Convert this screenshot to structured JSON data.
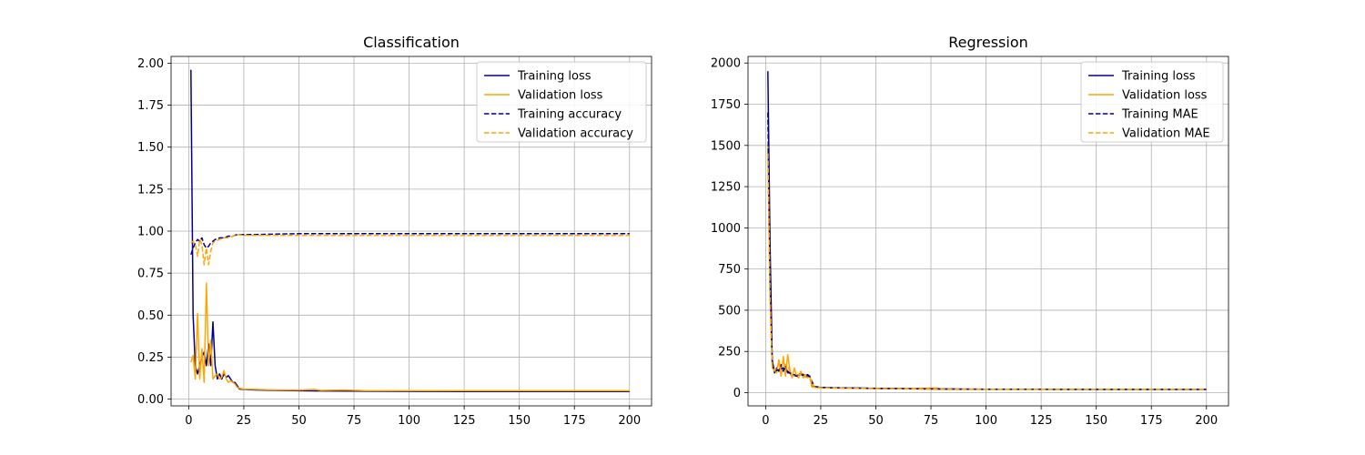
{
  "chart_data": [
    {
      "type": "line",
      "title": "Classification",
      "xlabel": "",
      "ylabel": "",
      "xlim": [
        -8,
        210
      ],
      "ylim": [
        -0.04,
        2.04
      ],
      "xticks": [
        0,
        25,
        50,
        75,
        100,
        125,
        150,
        175,
        200
      ],
      "yticks": [
        0.0,
        0.25,
        0.5,
        0.75,
        1.0,
        1.25,
        1.5,
        1.75,
        2.0
      ],
      "ytick_labels": [
        "0.00",
        "0.25",
        "0.50",
        "0.75",
        "1.00",
        "1.25",
        "1.50",
        "1.75",
        "2.00"
      ],
      "grid": true,
      "legend_position": "upper right",
      "series": [
        {
          "name": "Training loss",
          "color": "#00008b",
          "dash": "solid",
          "x": [
            1,
            2,
            3,
            4,
            5,
            6,
            7,
            8,
            9,
            10,
            11,
            12,
            13,
            14,
            15,
            16,
            17,
            18,
            19,
            20,
            21,
            22,
            23,
            25,
            30,
            40,
            50,
            60,
            80,
            100,
            150,
            200
          ],
          "y": [
            1.96,
            0.5,
            0.2,
            0.15,
            0.2,
            0.25,
            0.28,
            0.2,
            0.33,
            0.2,
            0.46,
            0.2,
            0.12,
            0.15,
            0.12,
            0.15,
            0.13,
            0.14,
            0.12,
            0.1,
            0.1,
            0.08,
            0.06,
            0.058,
            0.055,
            0.052,
            0.05,
            0.049,
            0.047,
            0.046,
            0.045,
            0.045
          ]
        },
        {
          "name": "Validation loss",
          "color": "#ffa500",
          "dash": "solid",
          "x": [
            1,
            2,
            3,
            4,
            5,
            6,
            7,
            8,
            9,
            10,
            11,
            12,
            13,
            14,
            15,
            16,
            17,
            18,
            19,
            20,
            21,
            22,
            23,
            25,
            30,
            40,
            50,
            57,
            60,
            70,
            80,
            100,
            150,
            200
          ],
          "y": [
            0.22,
            0.26,
            0.12,
            0.51,
            0.12,
            0.3,
            0.1,
            0.69,
            0.2,
            0.35,
            0.12,
            0.14,
            0.15,
            0.12,
            0.13,
            0.17,
            0.12,
            0.1,
            0.11,
            0.1,
            0.09,
            0.07,
            0.065,
            0.06,
            0.058,
            0.055,
            0.054,
            0.058,
            0.052,
            0.055,
            0.051,
            0.05,
            0.05,
            0.05
          ]
        },
        {
          "name": "Training accuracy",
          "color": "#00008b",
          "dash": "dashed",
          "x": [
            1,
            2,
            3,
            4,
            5,
            6,
            7,
            8,
            9,
            10,
            11,
            12,
            14,
            16,
            18,
            20,
            22,
            25,
            30,
            50,
            100,
            150,
            200
          ],
          "y": [
            0.86,
            0.9,
            0.93,
            0.95,
            0.94,
            0.96,
            0.92,
            0.9,
            0.91,
            0.93,
            0.94,
            0.95,
            0.96,
            0.96,
            0.97,
            0.97,
            0.98,
            0.98,
            0.98,
            0.985,
            0.985,
            0.985,
            0.985
          ]
        },
        {
          "name": "Validation accuracy",
          "color": "#ffa500",
          "dash": "dashed",
          "x": [
            1,
            2,
            3,
            4,
            5,
            6,
            7,
            8,
            9,
            10,
            11,
            12,
            14,
            16,
            18,
            20,
            22,
            25,
            30,
            50,
            100,
            150,
            200
          ],
          "y": [
            0.93,
            0.94,
            0.92,
            0.85,
            0.95,
            0.92,
            0.8,
            0.9,
            0.8,
            0.88,
            0.93,
            0.94,
            0.95,
            0.96,
            0.96,
            0.97,
            0.98,
            0.975,
            0.975,
            0.975,
            0.975,
            0.975,
            0.975
          ]
        }
      ]
    },
    {
      "type": "line",
      "title": "Regression",
      "xlabel": "",
      "ylabel": "",
      "xlim": [
        -8,
        210
      ],
      "ylim": [
        -80,
        2040
      ],
      "xticks": [
        0,
        25,
        50,
        75,
        100,
        125,
        150,
        175,
        200
      ],
      "yticks": [
        0,
        250,
        500,
        750,
        1000,
        1250,
        1500,
        1750,
        2000
      ],
      "ytick_labels": [
        "0",
        "250",
        "500",
        "750",
        "1000",
        "1250",
        "1500",
        "1750",
        "2000"
      ],
      "grid": true,
      "legend_position": "upper right",
      "series": [
        {
          "name": "Training loss",
          "color": "#00008b",
          "dash": "solid",
          "x": [
            1,
            2,
            3,
            4,
            5,
            6,
            7,
            8,
            9,
            10,
            11,
            12,
            13,
            14,
            15,
            16,
            17,
            18,
            19,
            20,
            21,
            22,
            25,
            30,
            40,
            50,
            60,
            80,
            100,
            150,
            200
          ],
          "y": [
            1950,
            900,
            200,
            120,
            150,
            130,
            170,
            130,
            160,
            120,
            120,
            100,
            110,
            100,
            110,
            120,
            110,
            100,
            110,
            100,
            40,
            35,
            32,
            30,
            28,
            26,
            25,
            22,
            21,
            20,
            20
          ]
        },
        {
          "name": "Validation loss",
          "color": "#ffa500",
          "dash": "solid",
          "x": [
            1,
            2,
            3,
            4,
            5,
            6,
            7,
            8,
            9,
            10,
            11,
            12,
            13,
            14,
            15,
            16,
            17,
            18,
            19,
            20,
            21,
            22,
            25,
            30,
            40,
            50,
            60,
            78,
            80,
            100,
            150,
            200
          ],
          "y": [
            1500,
            600,
            150,
            140,
            120,
            200,
            100,
            220,
            100,
            230,
            140,
            90,
            150,
            100,
            90,
            130,
            90,
            110,
            90,
            100,
            35,
            32,
            30,
            28,
            27,
            25,
            24,
            28,
            20,
            20,
            20,
            20
          ]
        },
        {
          "name": "Training MAE",
          "color": "#00008b",
          "dash": "dashed",
          "x": [
            1,
            2,
            3,
            4,
            6,
            8,
            10,
            12,
            14,
            16,
            18,
            20,
            22,
            25,
            30,
            50,
            80,
            100,
            150,
            200
          ],
          "y": [
            1700,
            700,
            180,
            130,
            140,
            150,
            130,
            110,
            100,
            110,
            100,
            100,
            38,
            32,
            30,
            26,
            22,
            21,
            20,
            20
          ]
        },
        {
          "name": "Validation MAE",
          "color": "#ffa500",
          "dash": "dashed",
          "x": [
            1,
            2,
            3,
            4,
            6,
            8,
            10,
            12,
            14,
            16,
            18,
            20,
            22,
            25,
            30,
            50,
            80,
            100,
            150,
            200
          ],
          "y": [
            1450,
            550,
            160,
            130,
            170,
            180,
            160,
            100,
            110,
            110,
            95,
            95,
            35,
            30,
            28,
            25,
            20,
            20,
            20,
            20
          ]
        }
      ]
    }
  ]
}
